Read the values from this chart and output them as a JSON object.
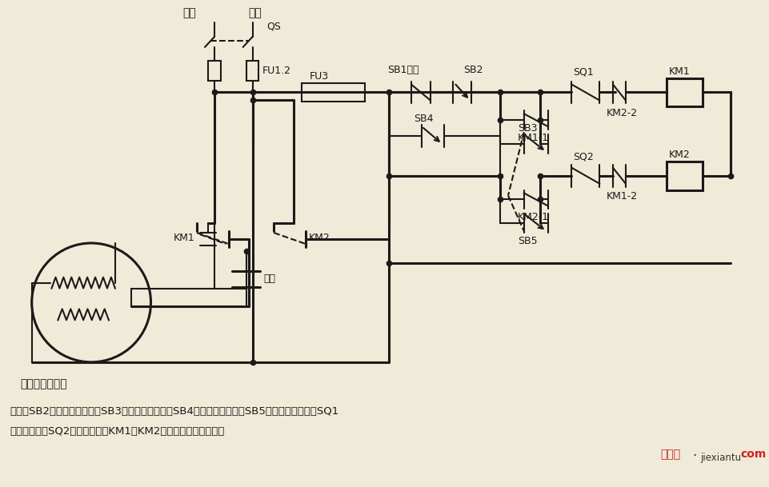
{
  "bg": "#f0ead8",
  "lc": "#1a1a1a",
  "lw": 1.5,
  "lw2": 2.2,
  "label_huoxian": "火线",
  "label_lingxian": "零线",
  "label_QS": "QS",
  "label_FU12": "FU1.2",
  "label_FU3": "FU3",
  "label_SB1": "SB1停止",
  "label_SB2": "SB2",
  "label_KM11": "KM1-1",
  "label_SB3": "SB3",
  "label_SB4": "SB4",
  "label_KM21": "KM2-1",
  "label_SB5": "SB5",
  "label_SQ1": "SQ1",
  "label_SQ2": "SQ2",
  "label_KM1c": "KM1",
  "label_KM2c": "KM2",
  "label_KM22": "KM2-2",
  "label_KM12": "KM1-2",
  "label_motor": "单相电容电动机",
  "label_cap": "电容",
  "label_KM1p": "KM1",
  "label_KM2p": "KM2",
  "note1": "说明：SB2为上升启动按鈕，SB3为上升点动按鈕，SB4为下降启动按鈕，SB5为下降点动按鈕；SQ1",
  "note2": "为最高限位，SQ2为最低限位。KM1、KM2可用中间继电器代替。"
}
